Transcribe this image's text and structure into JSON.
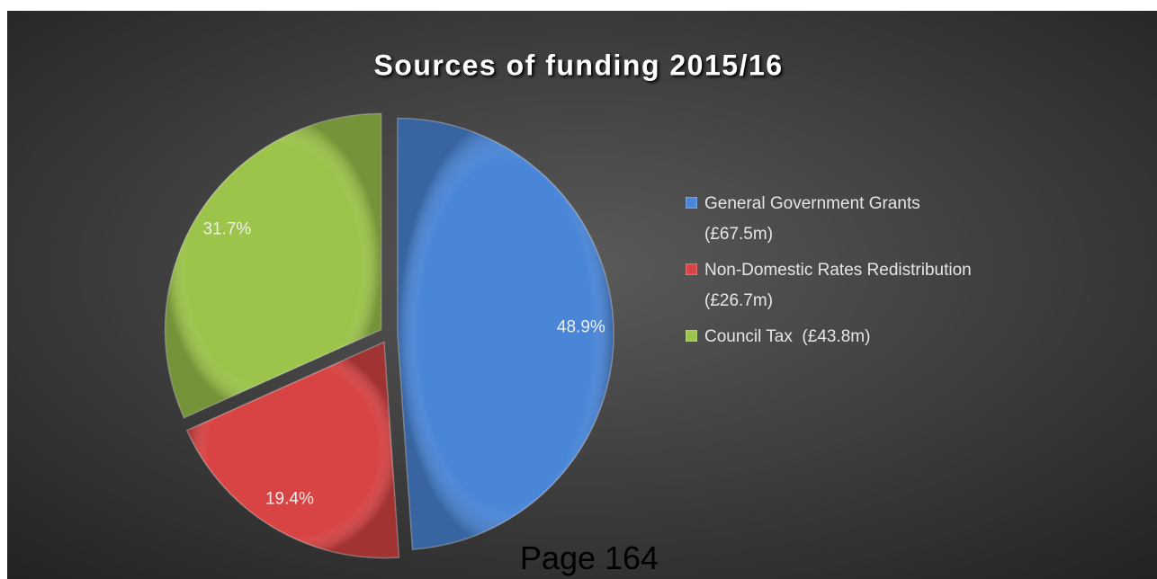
{
  "chart_data": {
    "type": "pie",
    "title": "Sources of funding 2015/16",
    "categories": [
      "General Government Grants (£67.5m)",
      "Non-Domestic Rates Redistribution (£26.7m)",
      "Council Tax  (£43.8m)"
    ],
    "values": [
      48.9,
      19.4,
      31.7
    ],
    "value_labels": [
      "48.9%",
      "19.4%",
      "31.7%"
    ],
    "colors": [
      "#4a86d8",
      "#d84444",
      "#9cc44a"
    ],
    "legend": "right"
  },
  "footer": "Page 164"
}
